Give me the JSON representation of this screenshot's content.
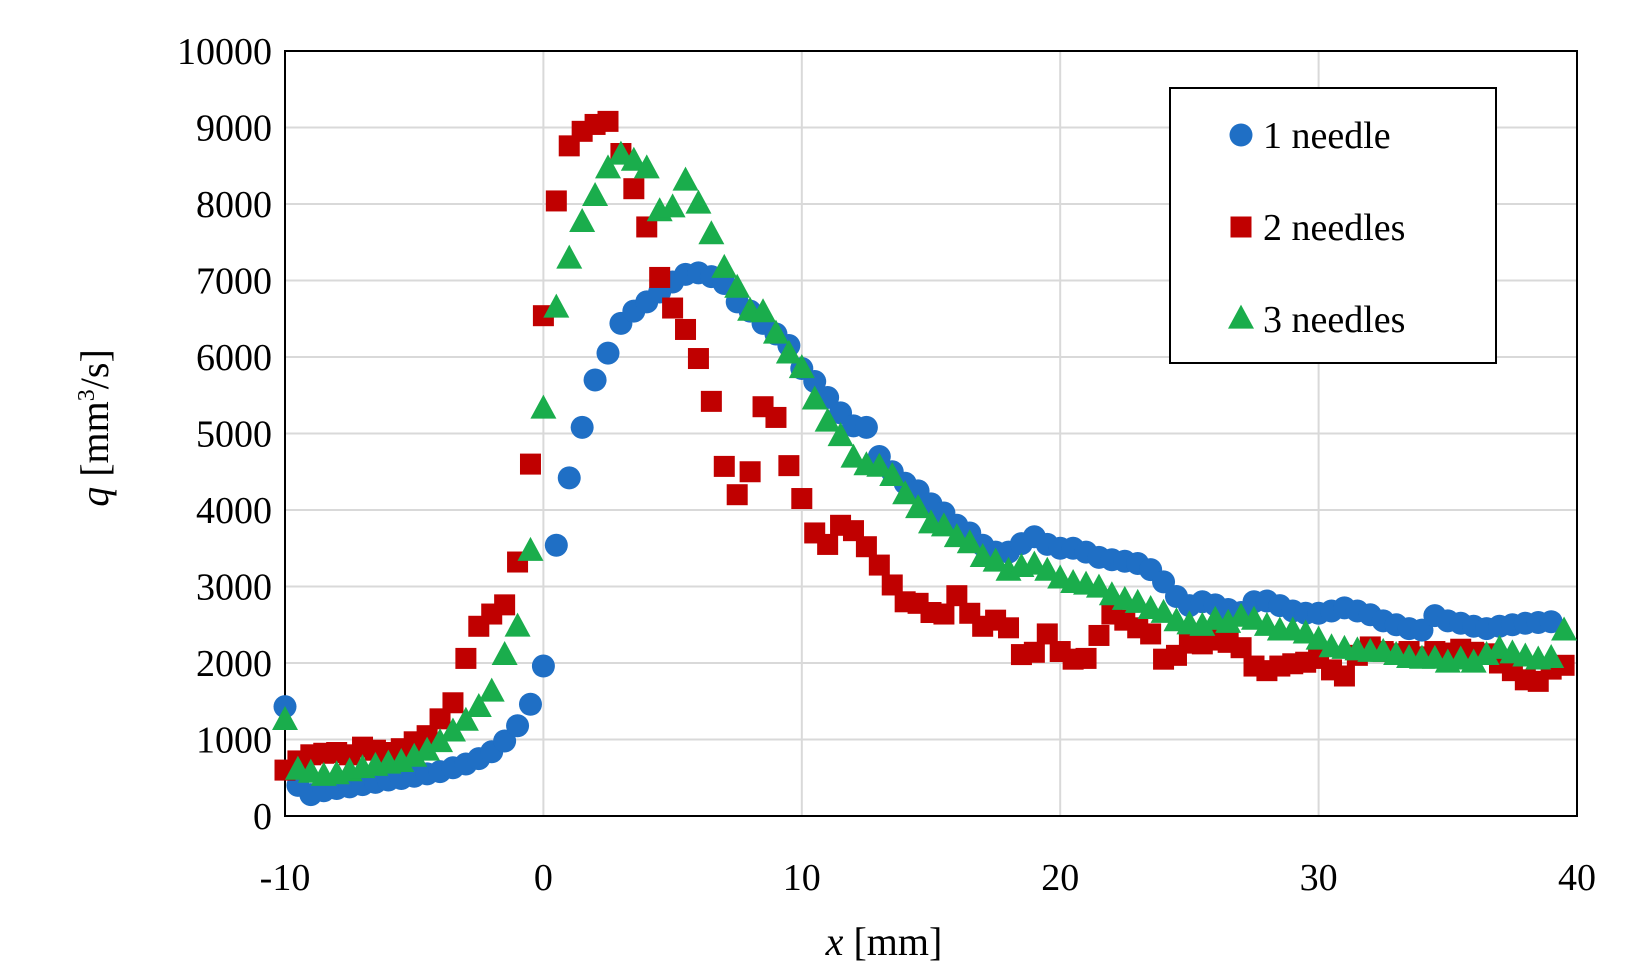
{
  "chart_data": {
    "type": "scatter",
    "xlabel_var": "x",
    "xlabel_unit": " [mm]",
    "ylabel_var": "q",
    "ylabel_unit_pre": " [mm",
    "ylabel_unit_sup": "3",
    "ylabel_unit_post": "/s]",
    "xlim": [
      -10,
      40
    ],
    "ylim": [
      0,
      10000
    ],
    "xticks": [
      -10,
      0,
      10,
      20,
      30,
      40
    ],
    "yticks": [
      0,
      1000,
      2000,
      3000,
      4000,
      5000,
      6000,
      7000,
      8000,
      9000,
      10000
    ],
    "grid": true,
    "legend_position": "top-right",
    "series": [
      {
        "name": "1 needle",
        "color": "#1f6fc5",
        "marker": "circle",
        "points": [
          [
            -10,
            1430
          ],
          [
            -9.5,
            400
          ],
          [
            -9,
            280
          ],
          [
            -8.5,
            330
          ],
          [
            -8,
            360
          ],
          [
            -7.5,
            380
          ],
          [
            -7,
            410
          ],
          [
            -6.5,
            440
          ],
          [
            -6,
            470
          ],
          [
            -5.5,
            490
          ],
          [
            -5,
            520
          ],
          [
            -4.5,
            550
          ],
          [
            -4,
            580
          ],
          [
            -3.5,
            630
          ],
          [
            -3,
            680
          ],
          [
            -2.5,
            750
          ],
          [
            -2,
            840
          ],
          [
            -1.5,
            980
          ],
          [
            -1,
            1180
          ],
          [
            -0.5,
            1460
          ],
          [
            0,
            1960
          ],
          [
            0.5,
            3540
          ],
          [
            1,
            4420
          ],
          [
            1.5,
            5080
          ],
          [
            2,
            5700
          ],
          [
            2.5,
            6050
          ],
          [
            3,
            6440
          ],
          [
            3.5,
            6600
          ],
          [
            4,
            6720
          ],
          [
            4.5,
            6850
          ],
          [
            5,
            6980
          ],
          [
            5.5,
            7080
          ],
          [
            6,
            7100
          ],
          [
            6.5,
            7050
          ],
          [
            7,
            6960
          ],
          [
            7.5,
            6720
          ],
          [
            8,
            6600
          ],
          [
            8.5,
            6440
          ],
          [
            9,
            6300
          ],
          [
            9.5,
            6150
          ],
          [
            10,
            5850
          ],
          [
            10.5,
            5680
          ],
          [
            11,
            5470
          ],
          [
            11.5,
            5270
          ],
          [
            12,
            5100
          ],
          [
            12.5,
            5080
          ],
          [
            13,
            4700
          ],
          [
            13.5,
            4500
          ],
          [
            14,
            4350
          ],
          [
            14.5,
            4250
          ],
          [
            15,
            4080
          ],
          [
            15.5,
            3960
          ],
          [
            16,
            3800
          ],
          [
            16.5,
            3700
          ],
          [
            17,
            3540
          ],
          [
            17.5,
            3450
          ],
          [
            18,
            3450
          ],
          [
            18.5,
            3560
          ],
          [
            19,
            3650
          ],
          [
            19.5,
            3550
          ],
          [
            20,
            3500
          ],
          [
            20.5,
            3500
          ],
          [
            21,
            3450
          ],
          [
            21.5,
            3380
          ],
          [
            22,
            3350
          ],
          [
            22.5,
            3330
          ],
          [
            23,
            3300
          ],
          [
            23.5,
            3220
          ],
          [
            24,
            3060
          ],
          [
            24.5,
            2870
          ],
          [
            25,
            2750
          ],
          [
            25.5,
            2800
          ],
          [
            26,
            2760
          ],
          [
            26.5,
            2700
          ],
          [
            27,
            2660
          ],
          [
            27.5,
            2800
          ],
          [
            28,
            2810
          ],
          [
            28.5,
            2750
          ],
          [
            29,
            2680
          ],
          [
            29.5,
            2650
          ],
          [
            30,
            2650
          ],
          [
            30.5,
            2680
          ],
          [
            31,
            2720
          ],
          [
            31.5,
            2680
          ],
          [
            32,
            2630
          ],
          [
            32.5,
            2550
          ],
          [
            33,
            2500
          ],
          [
            33.5,
            2450
          ],
          [
            34,
            2430
          ],
          [
            34.5,
            2620
          ],
          [
            35,
            2550
          ],
          [
            35.5,
            2520
          ],
          [
            36,
            2480
          ],
          [
            36.5,
            2450
          ],
          [
            37,
            2480
          ],
          [
            37.5,
            2500
          ],
          [
            38,
            2520
          ],
          [
            38.5,
            2530
          ],
          [
            39,
            2540
          ]
        ]
      },
      {
        "name": "2 needles",
        "color": "#c00000",
        "marker": "square",
        "points": [
          [
            -10,
            600
          ],
          [
            -9.5,
            720
          ],
          [
            -9,
            800
          ],
          [
            -8.5,
            820
          ],
          [
            -8,
            830
          ],
          [
            -7.5,
            800
          ],
          [
            -7,
            900
          ],
          [
            -6.5,
            860
          ],
          [
            -6,
            830
          ],
          [
            -5.5,
            880
          ],
          [
            -5,
            970
          ],
          [
            -4.5,
            1050
          ],
          [
            -4,
            1270
          ],
          [
            -3.5,
            1480
          ],
          [
            -3,
            2060
          ],
          [
            -2.5,
            2480
          ],
          [
            -2,
            2640
          ],
          [
            -1.5,
            2760
          ],
          [
            -1,
            3320
          ],
          [
            -0.5,
            4600
          ],
          [
            0,
            6540
          ],
          [
            0.5,
            8040
          ],
          [
            1,
            8760
          ],
          [
            1.5,
            8950
          ],
          [
            2,
            9040
          ],
          [
            2.5,
            9080
          ],
          [
            3,
            8660
          ],
          [
            3.5,
            8200
          ],
          [
            4,
            7700
          ],
          [
            4.5,
            7040
          ],
          [
            5,
            6640
          ],
          [
            5.5,
            6360
          ],
          [
            6,
            5980
          ],
          [
            6.5,
            5420
          ],
          [
            7,
            4570
          ],
          [
            7.5,
            4200
          ],
          [
            8,
            4500
          ],
          [
            8.5,
            5350
          ],
          [
            9,
            5210
          ],
          [
            9.5,
            4580
          ],
          [
            10,
            4150
          ],
          [
            10.5,
            3700
          ],
          [
            11,
            3550
          ],
          [
            11.5,
            3800
          ],
          [
            12,
            3730
          ],
          [
            12.5,
            3520
          ],
          [
            13,
            3280
          ],
          [
            13.5,
            3020
          ],
          [
            14,
            2800
          ],
          [
            14.5,
            2780
          ],
          [
            15,
            2660
          ],
          [
            15.5,
            2640
          ],
          [
            16,
            2880
          ],
          [
            16.5,
            2650
          ],
          [
            17,
            2480
          ],
          [
            17.5,
            2560
          ],
          [
            18,
            2460
          ],
          [
            18.5,
            2110
          ],
          [
            19,
            2140
          ],
          [
            19.5,
            2380
          ],
          [
            20,
            2150
          ],
          [
            20.5,
            2050
          ],
          [
            21,
            2060
          ],
          [
            21.5,
            2360
          ],
          [
            22,
            2640
          ],
          [
            22.5,
            2560
          ],
          [
            23,
            2460
          ],
          [
            23.5,
            2380
          ],
          [
            24,
            2050
          ],
          [
            24.5,
            2100
          ],
          [
            25,
            2260
          ],
          [
            25.5,
            2250
          ],
          [
            26,
            2300
          ],
          [
            26.5,
            2270
          ],
          [
            27,
            2200
          ],
          [
            27.5,
            1960
          ],
          [
            28,
            1900
          ],
          [
            28.5,
            1960
          ],
          [
            29,
            1990
          ],
          [
            29.5,
            2010
          ],
          [
            30,
            2060
          ],
          [
            30.5,
            1910
          ],
          [
            31,
            1830
          ],
          [
            31.5,
            2100
          ],
          [
            32,
            2210
          ],
          [
            32.5,
            2150
          ],
          [
            33,
            2120
          ],
          [
            33.5,
            2150
          ],
          [
            34,
            2080
          ],
          [
            34.5,
            2150
          ],
          [
            35,
            2130
          ],
          [
            35.5,
            2180
          ],
          [
            36,
            2140
          ],
          [
            36.5,
            2120
          ],
          [
            37,
            2000
          ],
          [
            37.5,
            1900
          ],
          [
            38,
            1780
          ],
          [
            38.5,
            1760
          ],
          [
            39,
            1920
          ],
          [
            39.5,
            1970
          ]
        ]
      },
      {
        "name": "3 needles",
        "color": "#1aad4c",
        "marker": "triangle",
        "points": [
          [
            -10,
            1250
          ],
          [
            -9.5,
            600
          ],
          [
            -9,
            560
          ],
          [
            -8.5,
            520
          ],
          [
            -8,
            540
          ],
          [
            -7.5,
            580
          ],
          [
            -7,
            620
          ],
          [
            -6.5,
            650
          ],
          [
            -6,
            680
          ],
          [
            -5.5,
            700
          ],
          [
            -5,
            770
          ],
          [
            -4.5,
            850
          ],
          [
            -4,
            960
          ],
          [
            -3.5,
            1100
          ],
          [
            -3,
            1240
          ],
          [
            -2.5,
            1420
          ],
          [
            -2,
            1620
          ],
          [
            -1.5,
            2100
          ],
          [
            -1,
            2470
          ],
          [
            -0.5,
            3460
          ],
          [
            0,
            5320
          ],
          [
            0.5,
            6640
          ],
          [
            1,
            7280
          ],
          [
            1.5,
            7760
          ],
          [
            2,
            8100
          ],
          [
            2.5,
            8460
          ],
          [
            3,
            8640
          ],
          [
            3.5,
            8560
          ],
          [
            4,
            8460
          ],
          [
            4.5,
            7900
          ],
          [
            5,
            7950
          ],
          [
            5.5,
            8300
          ],
          [
            6,
            8000
          ],
          [
            6.5,
            7600
          ],
          [
            7,
            7160
          ],
          [
            7.5,
            6900
          ],
          [
            8,
            6600
          ],
          [
            8.5,
            6580
          ],
          [
            9,
            6300
          ],
          [
            9.5,
            6040
          ],
          [
            10,
            5850
          ],
          [
            10.5,
            5440
          ],
          [
            11,
            5150
          ],
          [
            11.5,
            4960
          ],
          [
            12,
            4680
          ],
          [
            12.5,
            4580
          ],
          [
            13,
            4560
          ],
          [
            13.5,
            4440
          ],
          [
            14,
            4200
          ],
          [
            14.5,
            4020
          ],
          [
            15,
            3820
          ],
          [
            15.5,
            3780
          ],
          [
            16,
            3640
          ],
          [
            16.5,
            3560
          ],
          [
            17,
            3380
          ],
          [
            17.5,
            3320
          ],
          [
            18,
            3200
          ],
          [
            18.5,
            3250
          ],
          [
            19,
            3280
          ],
          [
            19.5,
            3200
          ],
          [
            20,
            3100
          ],
          [
            20.5,
            3040
          ],
          [
            21,
            3020
          ],
          [
            21.5,
            2980
          ],
          [
            22,
            2880
          ],
          [
            22.5,
            2820
          ],
          [
            23,
            2780
          ],
          [
            23.5,
            2700
          ],
          [
            24,
            2650
          ],
          [
            24.5,
            2540
          ],
          [
            25,
            2500
          ],
          [
            25.5,
            2480
          ],
          [
            26,
            2560
          ],
          [
            26.5,
            2520
          ],
          [
            27,
            2600
          ],
          [
            27.5,
            2560
          ],
          [
            28,
            2480
          ],
          [
            28.5,
            2420
          ],
          [
            29,
            2420
          ],
          [
            29.5,
            2380
          ],
          [
            30,
            2300
          ],
          [
            30.5,
            2200
          ],
          [
            31,
            2180
          ],
          [
            31.5,
            2160
          ],
          [
            32,
            2140
          ],
          [
            32.5,
            2140
          ],
          [
            33,
            2100
          ],
          [
            33.5,
            2060
          ],
          [
            34,
            2050
          ],
          [
            34.5,
            2050
          ],
          [
            35,
            2000
          ],
          [
            35.5,
            2040
          ],
          [
            36,
            2000
          ],
          [
            36.5,
            2100
          ],
          [
            37,
            2180
          ],
          [
            37.5,
            2120
          ],
          [
            38,
            2080
          ],
          [
            38.5,
            2040
          ],
          [
            39,
            2060
          ],
          [
            39.5,
            2420
          ]
        ]
      }
    ]
  }
}
